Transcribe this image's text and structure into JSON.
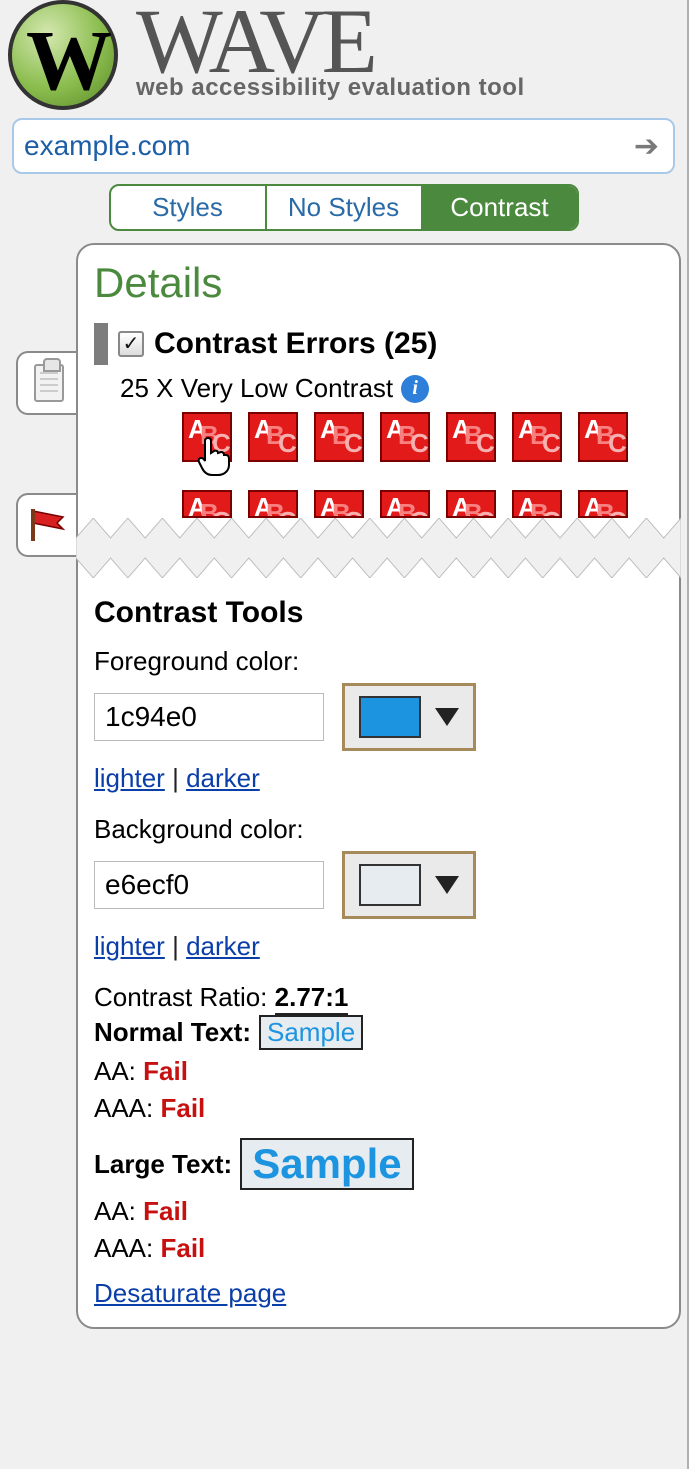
{
  "header": {
    "brand_letter": "W",
    "brand_name": "WAVE",
    "tagline": "web accessibility evaluation tool"
  },
  "urlbar": {
    "value": "example.com"
  },
  "viewtabs": {
    "styles": "Styles",
    "nostyles": "No Styles",
    "contrast": "Contrast",
    "active": "contrast"
  },
  "panel": {
    "title": "Details",
    "section_title": "Contrast Errors (25)",
    "section_sub": "25 X Very Low Contrast",
    "checkbox_checked": true,
    "tile_count_row1": 7,
    "tile_count_row2": 7
  },
  "tools": {
    "heading": "Contrast Tools",
    "foreground_label": "Foreground color:",
    "foreground_value": "1c94e0",
    "foreground_swatch": "#1c94e0",
    "background_label": "Background color:",
    "background_value": "e6ecf0",
    "background_swatch": "#e6ecf0",
    "lighter": "lighter",
    "darker": "darker",
    "sep": "|",
    "ratio_label": "Contrast Ratio:",
    "ratio_value": "2.77:1",
    "normal_label": "Normal Text:",
    "large_label": "Large Text:",
    "sample_text": "Sample",
    "aa_label": "AA:",
    "aaa_label": "AAA:",
    "fail": "Fail",
    "desaturate": "Desaturate page"
  },
  "style": {
    "fg": "#1c94e0",
    "bg": "#e6ecf0"
  }
}
